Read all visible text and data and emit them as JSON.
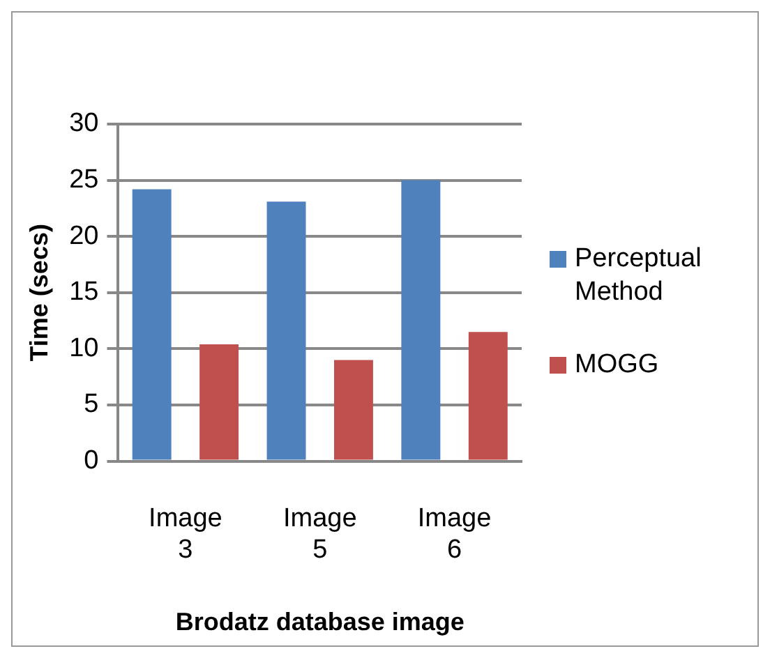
{
  "chart_data": {
    "type": "bar",
    "xlabel": "Brodatz database image",
    "ylabel": "Time (secs)",
    "categories": [
      "Image 3",
      "Image 5",
      "Image 6"
    ],
    "series": [
      {
        "name": "Perceptual Method",
        "color": "#4f81bd",
        "values": [
          24.2,
          23.1,
          25
        ]
      },
      {
        "name": "MOGG",
        "color": "#c0504d",
        "values": [
          10.4,
          9,
          11.5
        ]
      }
    ],
    "ylim": [
      0,
      30
    ],
    "yticks": [
      0,
      5,
      10,
      15,
      20,
      25,
      30
    ],
    "grid": "y",
    "legend": "right"
  }
}
